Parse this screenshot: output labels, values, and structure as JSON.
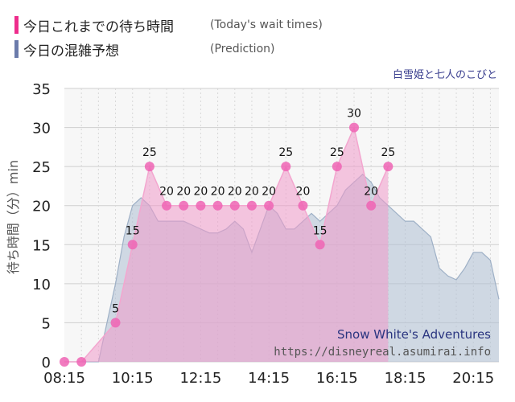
{
  "legend": {
    "today_label": "今日これまでの待ち時間",
    "today_sub": "(Today's wait times)",
    "today_color": "#ee2d8c",
    "prediction_label": "今日の混雑予想",
    "prediction_sub": "(Prediction)",
    "prediction_color": "#6b7bab"
  },
  "attraction_jp": "白雪姫と七人のこびと",
  "watermark": {
    "name": "Snow White's Adventures",
    "url": "https://disneyreal.asumirai.info"
  },
  "chart_data": {
    "type": "area",
    "ylabel": "待ち時間（分）min",
    "ylim": [
      0,
      35
    ],
    "yticks": [
      0,
      5,
      10,
      15,
      20,
      25,
      30,
      35
    ],
    "xlim": [
      "08:15",
      "21:00"
    ],
    "xticks": [
      "08:15",
      "10:15",
      "12:15",
      "14:15",
      "16:15",
      "18:15",
      "20:15"
    ],
    "grid": true,
    "series": [
      {
        "key": "prediction",
        "x": [
          "08:15",
          "08:30",
          "08:45",
          "09:00",
          "09:15",
          "09:30",
          "09:45",
          "10:00",
          "10:15",
          "10:30",
          "10:45",
          "11:00",
          "11:15",
          "11:30",
          "11:45",
          "12:00",
          "12:15",
          "12:30",
          "12:45",
          "13:00",
          "13:15",
          "13:30",
          "13:45",
          "14:00",
          "14:15",
          "14:30",
          "14:45",
          "15:00",
          "15:15",
          "15:30",
          "15:45",
          "16:00",
          "16:15",
          "16:30",
          "16:45",
          "17:00",
          "17:15",
          "17:30",
          "17:45",
          "18:00",
          "18:15",
          "18:30",
          "18:45",
          "19:00",
          "19:15",
          "19:30",
          "19:45",
          "20:00",
          "20:15",
          "20:30",
          "20:45",
          "21:00"
        ],
        "y": [
          0,
          0,
          0,
          0,
          0,
          5,
          10,
          16,
          20,
          21,
          20,
          18,
          18,
          18,
          18,
          17.5,
          17,
          16.5,
          16.5,
          17,
          18,
          17,
          14,
          17,
          20,
          19,
          17,
          17,
          18,
          19,
          18,
          19,
          20,
          22,
          23,
          24,
          23,
          21,
          20,
          19,
          18,
          18,
          17,
          16,
          12,
          11,
          10.5,
          12,
          14,
          14,
          13,
          8
        ]
      },
      {
        "key": "today",
        "x": [
          "08:15",
          "08:45",
          "09:45",
          "10:15",
          "10:45",
          "11:15",
          "11:45",
          "12:15",
          "12:45",
          "13:15",
          "13:45",
          "14:15",
          "14:45",
          "15:15",
          "15:45",
          "16:15",
          "16:45",
          "17:15",
          "17:45"
        ],
        "y": [
          0,
          0,
          5,
          15,
          25,
          20,
          20,
          20,
          20,
          20,
          20,
          20,
          25,
          20,
          15,
          25,
          30,
          20,
          25
        ]
      }
    ]
  }
}
